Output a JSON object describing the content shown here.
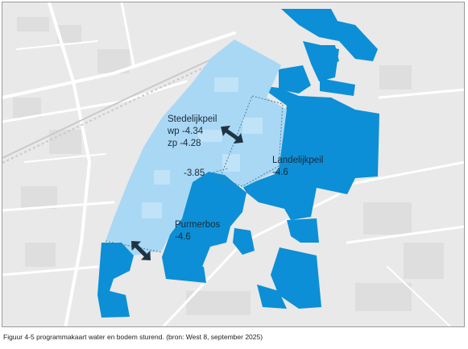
{
  "map": {
    "colors": {
      "urban_background": "#e9e9e9",
      "roads": "#ffffff",
      "stedelijk_zone": "#a9d8f5",
      "landelijk_zone": "#0c8fd6",
      "arrow": "#1f3442"
    },
    "labels": {
      "stedelijkpeil_title": "Stedelijkpeil",
      "stedelijkpeil_wp": "wp -4.34",
      "stedelijkpeil_zp": "zp  -4.28",
      "local_level": "-3.85",
      "landelijkpeil_title": "Landelijkpeil",
      "landelijkpeil_value": "-4.6",
      "purmerbos_title": "Purmerbos",
      "purmerbos_value": "-4.6"
    },
    "icons": [
      "double-arrow-icon",
      "double-arrow-icon"
    ]
  },
  "caption": "Figuur 4-5 programmakaart water en bodem sturend. (bron: West 8, september 2025)"
}
